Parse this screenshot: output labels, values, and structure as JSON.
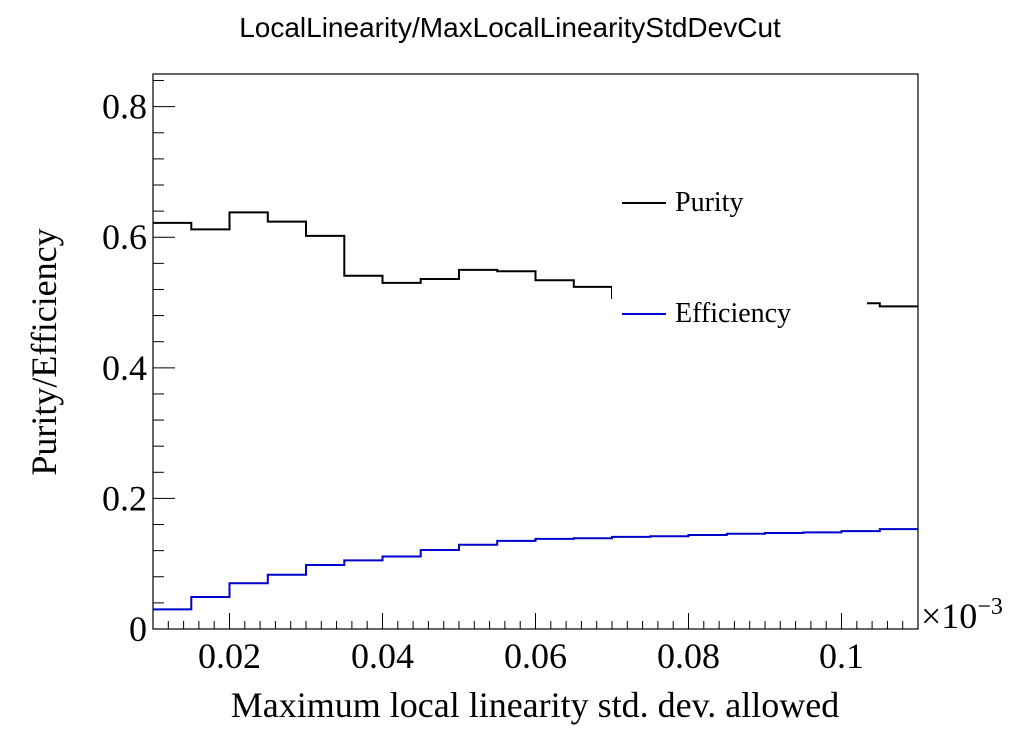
{
  "chart_data": {
    "type": "line",
    "title": "LocalLinearity/MaxLocalLinearityStdDevCut",
    "xlabel": "Maximum local linearity std. dev. allowed",
    "ylabel": "Purity/Efficiency",
    "x_multiplier_label": "×10",
    "x_multiplier_exponent": "−3",
    "xlim": [
      0.01,
      0.11
    ],
    "ylim": [
      0,
      0.85
    ],
    "x_ticks": [
      {
        "value": 0.02,
        "label": "0.02"
      },
      {
        "value": 0.04,
        "label": "0.04"
      },
      {
        "value": 0.06,
        "label": "0.06"
      },
      {
        "value": 0.08,
        "label": "0.08"
      },
      {
        "value": 0.1,
        "label": "0.1"
      }
    ],
    "y_ticks": [
      {
        "value": 0,
        "label": "0"
      },
      {
        "value": 0.2,
        "label": "0.2"
      },
      {
        "value": 0.4,
        "label": "0.4"
      },
      {
        "value": 0.6,
        "label": "0.6"
      },
      {
        "value": 0.8,
        "label": "0.8"
      }
    ],
    "bin_edges": [
      0.01,
      0.015,
      0.02,
      0.025,
      0.03,
      0.035,
      0.04,
      0.045,
      0.05,
      0.055,
      0.06,
      0.065,
      0.07,
      0.075,
      0.08,
      0.085,
      0.09,
      0.095,
      0.1,
      0.105,
      0.11
    ],
    "series": [
      {
        "name": "Purity",
        "color": "#000000",
        "values": [
          0.622,
          0.612,
          0.638,
          0.624,
          0.602,
          0.541,
          0.53,
          0.536,
          0.55,
          0.548,
          0.534,
          0.524,
          0.507,
          0.504,
          0.502,
          0.501,
          0.5,
          0.5,
          0.499,
          0.494
        ]
      },
      {
        "name": "Efficiency",
        "color": "#0000cc",
        "values": [
          0.03,
          0.049,
          0.07,
          0.083,
          0.098,
          0.105,
          0.111,
          0.121,
          0.129,
          0.135,
          0.138,
          0.139,
          0.141,
          0.142,
          0.144,
          0.146,
          0.147,
          0.148,
          0.15,
          0.153
        ]
      }
    ],
    "legend": {
      "position": "upper-right",
      "entries": [
        "Purity",
        "Efficiency"
      ]
    },
    "grid": false
  }
}
